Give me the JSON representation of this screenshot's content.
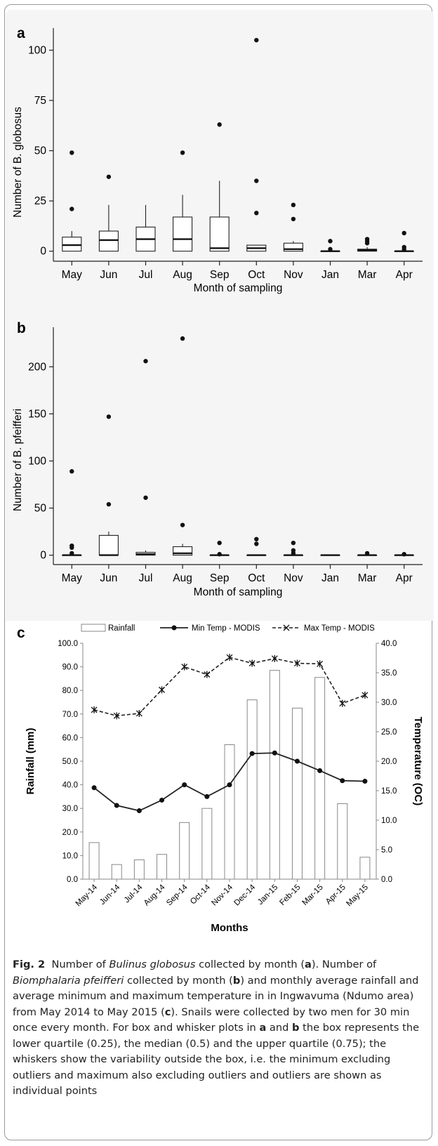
{
  "chart_data": [
    {
      "panel": "a",
      "type": "box",
      "xlabel": "Month of sampling",
      "ylabel": "Number of B. globosus",
      "ylim": [
        -5,
        111
      ],
      "yticks": [
        0,
        25,
        50,
        75,
        100
      ],
      "categories": [
        "May",
        "Jun",
        "Jul",
        "Aug",
        "Sep",
        "Oct",
        "Nov",
        "Jan",
        "Mar",
        "Apr"
      ],
      "boxes": [
        {
          "min": 0,
          "q1": 0,
          "median": 3,
          "q3": 7,
          "max": 10,
          "outliers": [
            21,
            49
          ]
        },
        {
          "min": 0,
          "q1": 0,
          "median": 5.5,
          "q3": 10,
          "max": 23,
          "outliers": [
            37
          ]
        },
        {
          "min": 0,
          "q1": 0,
          "median": 6,
          "q3": 12,
          "max": 23,
          "outliers": []
        },
        {
          "min": 0,
          "q1": 0,
          "median": 6,
          "q3": 17,
          "max": 28,
          "outliers": [
            49
          ]
        },
        {
          "min": 0,
          "q1": 0,
          "median": 1.5,
          "q3": 17,
          "max": 35,
          "outliers": [
            63
          ]
        },
        {
          "min": 0,
          "q1": 0,
          "median": 1.5,
          "q3": 3,
          "max": 3,
          "outliers": [
            19,
            35,
            105
          ]
        },
        {
          "min": 0,
          "q1": 0,
          "median": 1,
          "q3": 4,
          "max": 5,
          "outliers": [
            16,
            23
          ]
        },
        {
          "min": 0,
          "q1": 0,
          "median": 0,
          "q3": 0,
          "max": 0,
          "outliers": [
            1,
            5
          ]
        },
        {
          "min": 0,
          "q1": 0,
          "median": 0.5,
          "q3": 1,
          "max": 2,
          "outliers": [
            4,
            5,
            6
          ]
        },
        {
          "min": 0,
          "q1": 0,
          "median": 0,
          "q3": 0,
          "max": 0,
          "outliers": [
            1,
            2,
            9
          ]
        }
      ]
    },
    {
      "panel": "b",
      "type": "box",
      "xlabel": "Month of sampling",
      "ylabel": "Number of B. pfeifferi",
      "ylim": [
        -10,
        242
      ],
      "yticks": [
        0,
        50,
        100,
        150,
        200
      ],
      "categories": [
        "May",
        "Jun",
        "Jul",
        "Aug",
        "Sep",
        "Oct",
        "Nov",
        "Jan",
        "Mar",
        "Apr"
      ],
      "boxes": [
        {
          "min": 0,
          "q1": 0,
          "median": 0,
          "q3": 0,
          "max": 0,
          "outliers": [
            2,
            8,
            10,
            89
          ]
        },
        {
          "min": 0,
          "q1": 0,
          "median": 0,
          "q3": 21,
          "max": 25,
          "outliers": [
            54,
            147
          ]
        },
        {
          "min": 0,
          "q1": 0,
          "median": 1,
          "q3": 3,
          "max": 5,
          "outliers": [
            61,
            206
          ]
        },
        {
          "min": 0,
          "q1": 0,
          "median": 2,
          "q3": 9,
          "max": 12,
          "outliers": [
            32,
            230
          ]
        },
        {
          "min": 0,
          "q1": 0,
          "median": 0,
          "q3": 0,
          "max": 0,
          "outliers": [
            1,
            13
          ]
        },
        {
          "min": 0,
          "q1": 0,
          "median": 0,
          "q3": 0,
          "max": 0,
          "outliers": [
            12,
            17
          ]
        },
        {
          "min": 0,
          "q1": 0,
          "median": 0,
          "q3": 0,
          "max": 0,
          "outliers": [
            2,
            5,
            13
          ]
        },
        {
          "min": 0,
          "q1": 0,
          "median": 0,
          "q3": 0,
          "max": 0,
          "outliers": []
        },
        {
          "min": 0,
          "q1": 0,
          "median": 0,
          "q3": 0,
          "max": 0,
          "outliers": [
            2
          ]
        },
        {
          "min": 0,
          "q1": 0,
          "median": 0,
          "q3": 0,
          "max": 0,
          "outliers": [
            1
          ]
        }
      ]
    },
    {
      "panel": "c",
      "type": "bar+line",
      "xlabel": "Months",
      "ylabel": "Rainfall (mm)",
      "y2label": "Temperature (OC)",
      "ylim": [
        0,
        100
      ],
      "y2lim": [
        0,
        40
      ],
      "yticks": [
        "0.0",
        "10.0",
        "20.0",
        "30.0",
        "40.0",
        "50.0",
        "60.0",
        "70.0",
        "80.0",
        "90.0",
        "100.0"
      ],
      "y2ticks": [
        "0.0",
        "5.0",
        "10.0",
        "15.0",
        "20.0",
        "25.0",
        "30.0",
        "35.0",
        "40.0"
      ],
      "legend": "top",
      "categories": [
        "May-14",
        "Jun-14",
        "Jul-14",
        "Aug-14",
        "Sep-14",
        "Oct-14",
        "Nov-14",
        "Dec-14",
        "Jan-15",
        "Feb-15",
        "Mar-15",
        "Apr-15",
        "May-15"
      ],
      "series": [
        {
          "name": "Rainfall",
          "type": "bar",
          "axis": "left",
          "values": [
            15.5,
            6.2,
            8.2,
            10.5,
            24.0,
            30.0,
            57.0,
            76.0,
            88.5,
            72.5,
            85.5,
            32.0,
            9.3
          ]
        },
        {
          "name": "Min Temp - MODIS",
          "type": "line",
          "axis": "right",
          "values": [
            15.5,
            12.5,
            11.6,
            13.4,
            16.0,
            14.0,
            16.0,
            21.3,
            21.4,
            20.0,
            18.4,
            16.7,
            16.6
          ]
        },
        {
          "name": "Max Temp - MODIS",
          "type": "line",
          "axis": "right",
          "dashed": true,
          "values": [
            28.7,
            27.7,
            28.1,
            32.1,
            36.0,
            34.7,
            37.6,
            36.6,
            37.4,
            36.6,
            36.5,
            29.8,
            31.2
          ]
        }
      ]
    }
  ],
  "panel_labels": {
    "a": "a",
    "b": "b",
    "c": "c"
  },
  "caption": {
    "fig_label": "Fig. 2",
    "t1": "Number of ",
    "sp1": "Bulinus globosus",
    "t2": " collected by month (",
    "p1": "a",
    "t3": "). Number of ",
    "sp2": "Biomphalaria pfeifferi",
    "t4": " collected by month (",
    "p2": "b",
    "t5": ") and monthly average rainfall and average minimum and maximum temperature in in Ingwavuma (Ndumo area) from May 2014 to May 2015 (",
    "p3": "c",
    "t6": "). Snails were collected by two men for 30 min once every month. For box and whisker plots in ",
    "p4": "a",
    "t7": " and ",
    "p5": "b",
    "t8": " the box represents the lower quartile (0.25), the median (0.5) and the upper quartile (0.75); the whiskers show the variability outside the box, i.e. the minimum excluding outliers and maximum also excluding outliers and outliers are shown as individual points"
  }
}
